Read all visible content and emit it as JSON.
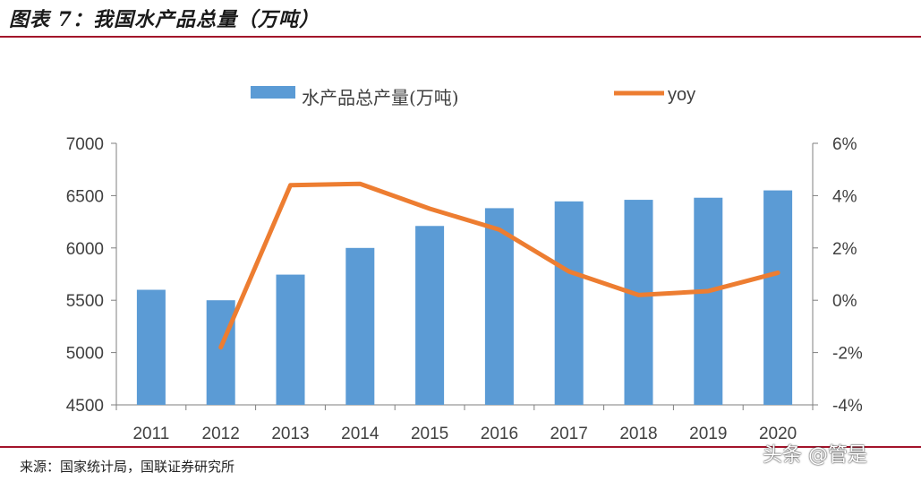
{
  "figure_title": "图表 7：我国水产品总量（万吨）",
  "source": "来源：国家统计局，国联证券研究所",
  "watermark": "头条 @管是",
  "colors": {
    "bar": "#5b9bd5",
    "line": "#ed7d31",
    "rule": "#a3132a",
    "axis": "#7f7f7f"
  },
  "chart_data": {
    "type": "bar",
    "categories": [
      "2011",
      "2012",
      "2013",
      "2014",
      "2015",
      "2016",
      "2017",
      "2018",
      "2019",
      "2020"
    ],
    "series": [
      {
        "name": "水产品总产量(万吨)",
        "type": "bar",
        "axis": "left",
        "values": [
          5600,
          5500,
          5745,
          6000,
          6210,
          6380,
          6445,
          6460,
          6480,
          6550
        ]
      },
      {
        "name": "yoy",
        "type": "line",
        "axis": "right",
        "values": [
          null,
          -1.8,
          4.4,
          4.45,
          3.5,
          2.7,
          1.1,
          0.2,
          0.35,
          1.05
        ]
      }
    ],
    "left_axis": {
      "ylim": [
        4500,
        7000
      ],
      "ticks": [
        "4500",
        "5000",
        "5500",
        "6000",
        "6500",
        "7000"
      ]
    },
    "right_axis": {
      "ylim": [
        -4,
        6
      ],
      "ticks": [
        "-4%",
        "-2%",
        "0%",
        "2%",
        "4%",
        "6%"
      ]
    },
    "legend_position": "top-center",
    "grid": false
  }
}
